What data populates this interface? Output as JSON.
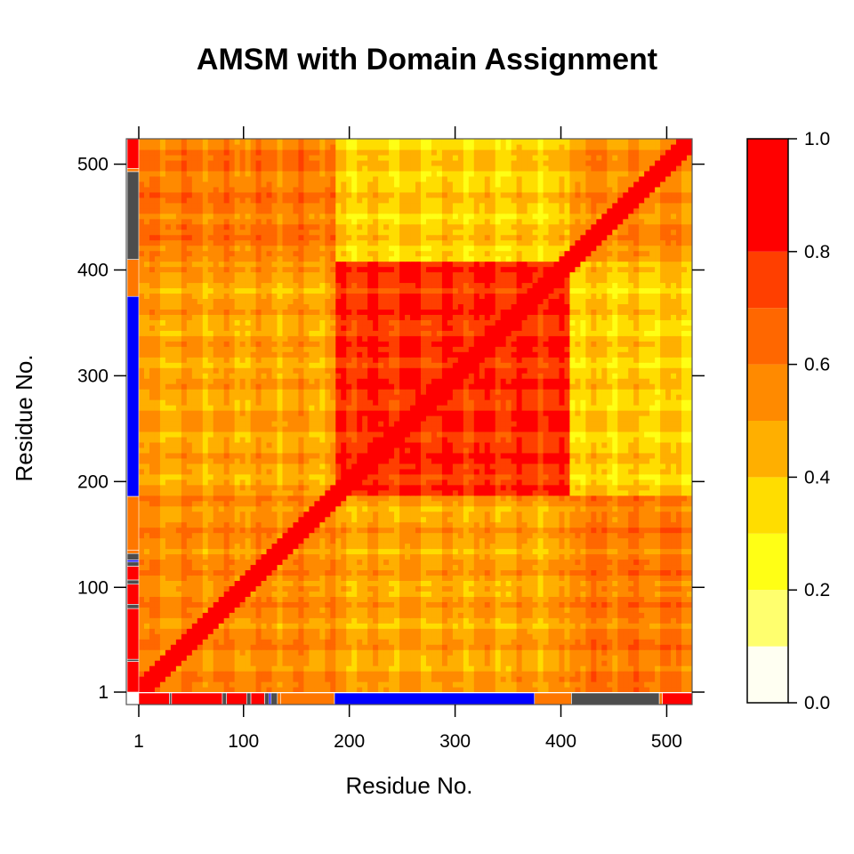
{
  "chart_data": {
    "type": "heatmap",
    "title": "AMSM with Domain Assignment",
    "xlabel": "Residue No.",
    "ylabel": "Residue No.",
    "xlim": [
      1,
      524
    ],
    "ylim": [
      1,
      524
    ],
    "x_ticks": [
      {
        "value": 1,
        "label": "1"
      },
      {
        "value": 100,
        "label": "100"
      },
      {
        "value": 200,
        "label": "200"
      },
      {
        "value": 300,
        "label": "300"
      },
      {
        "value": 400,
        "label": "400"
      },
      {
        "value": 500,
        "label": "500"
      }
    ],
    "y_ticks": [
      {
        "value": 1,
        "label": "1"
      },
      {
        "value": 100,
        "label": "100"
      },
      {
        "value": 200,
        "label": "200"
      },
      {
        "value": 300,
        "label": "300"
      },
      {
        "value": 400,
        "label": "400"
      },
      {
        "value": 500,
        "label": "500"
      }
    ],
    "colorbar": {
      "range": [
        0,
        1
      ],
      "ticks": [
        {
          "value": 0.0,
          "label": "0.0"
        },
        {
          "value": 0.2,
          "label": "0.2"
        },
        {
          "value": 0.4,
          "label": "0.4"
        },
        {
          "value": 0.6,
          "label": "0.6"
        },
        {
          "value": 0.8,
          "label": "0.8"
        },
        {
          "value": 1.0,
          "label": "1.0"
        }
      ],
      "levels": [
        {
          "from": 0.0,
          "to": 0.1,
          "color": "#FFFFF2"
        },
        {
          "from": 0.1,
          "to": 0.2,
          "color": "#FFFF6E"
        },
        {
          "from": 0.2,
          "to": 0.3,
          "color": "#FFFF15"
        },
        {
          "from": 0.3,
          "to": 0.4,
          "color": "#FFDD00"
        },
        {
          "from": 0.4,
          "to": 0.5,
          "color": "#FFAF00"
        },
        {
          "from": 0.5,
          "to": 0.6,
          "color": "#FF8A00"
        },
        {
          "from": 0.6,
          "to": 0.7,
          "color": "#FF6700"
        },
        {
          "from": 0.7,
          "to": 0.8,
          "color": "#FF3F00"
        },
        {
          "from": 0.8,
          "to": 1.0,
          "color": "#FF0000"
        }
      ]
    },
    "domains": [
      {
        "from": 1,
        "to": 30,
        "color": "#FF0000"
      },
      {
        "from": 30,
        "to": 32,
        "color": "#4D4D4D"
      },
      {
        "from": 32,
        "to": 80,
        "color": "#FF0000"
      },
      {
        "from": 80,
        "to": 84,
        "color": "#4D4D4D"
      },
      {
        "from": 84,
        "to": 103,
        "color": "#FF0000"
      },
      {
        "from": 103,
        "to": 107,
        "color": "#4D4D4D"
      },
      {
        "from": 107,
        "to": 120,
        "color": "#FF0000"
      },
      {
        "from": 120,
        "to": 124,
        "color": "#4D4D4D"
      },
      {
        "from": 124,
        "to": 126,
        "color": "#0000FF"
      },
      {
        "from": 126,
        "to": 132,
        "color": "#4D4D4D"
      },
      {
        "from": 132,
        "to": 135,
        "color": "#FF7700"
      },
      {
        "from": 135,
        "to": 186,
        "color": "#FF7700"
      },
      {
        "from": 186,
        "to": 375,
        "color": "#0000FF"
      },
      {
        "from": 375,
        "to": 410,
        "color": "#FF7700"
      },
      {
        "from": 410,
        "to": 493,
        "color": "#4D4D4D"
      },
      {
        "from": 493,
        "to": 496,
        "color": "#FF7700"
      },
      {
        "from": 496,
        "to": 524,
        "color": "#FF0000"
      }
    ],
    "blocks": [
      {
        "x": [
          1,
          186
        ],
        "y": [
          1,
          186
        ],
        "value": 0.55
      },
      {
        "x": [
          186,
          410
        ],
        "y": [
          186,
          410
        ],
        "value": 0.78
      },
      {
        "x": [
          410,
          524
        ],
        "y": [
          410,
          524
        ],
        "value": 0.55
      },
      {
        "x": [
          1,
          186
        ],
        "y": [
          186,
          410
        ],
        "value": 0.48
      },
      {
        "x": [
          186,
          410
        ],
        "y": [
          1,
          186
        ],
        "value": 0.48
      },
      {
        "x": [
          186,
          410
        ],
        "y": [
          410,
          524
        ],
        "value": 0.38
      },
      {
        "x": [
          410,
          524
        ],
        "y": [
          186,
          410
        ],
        "value": 0.38
      },
      {
        "x": [
          1,
          186
        ],
        "y": [
          410,
          524
        ],
        "value": 0.6
      },
      {
        "x": [
          410,
          524
        ],
        "y": [
          1,
          186
        ],
        "value": 0.6
      }
    ],
    "grid": false,
    "legend": "right"
  }
}
